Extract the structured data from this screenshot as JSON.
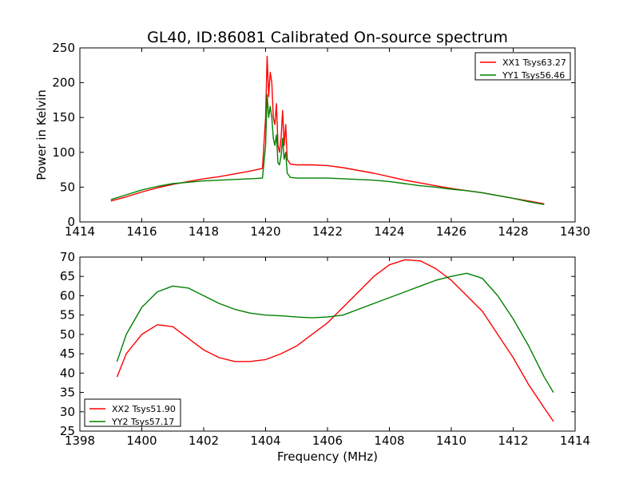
{
  "chart_data": [
    {
      "type": "line",
      "title": "GL40, ID:86081 Calibrated On-source spectrum",
      "xlabel": "",
      "ylabel": "Power in Kelvin",
      "xlim": [
        1414,
        1430
      ],
      "ylim": [
        0,
        250
      ],
      "xticks": [
        1414,
        1416,
        1418,
        1420,
        1422,
        1424,
        1426,
        1428,
        1430
      ],
      "yticks": [
        0,
        50,
        100,
        150,
        200,
        250
      ],
      "grid": false,
      "legend_position": "top-right",
      "series": [
        {
          "name": "XX1 Tsys63.27",
          "color": "#ff0000",
          "x": [
            1415,
            1415.5,
            1416,
            1416.5,
            1417,
            1417.5,
            1418,
            1418.5,
            1419,
            1419.5,
            1419.9,
            1420.0,
            1420.05,
            1420.1,
            1420.15,
            1420.2,
            1420.25,
            1420.3,
            1420.35,
            1420.4,
            1420.45,
            1420.5,
            1420.55,
            1420.6,
            1420.65,
            1420.7,
            1420.8,
            1421,
            1421.5,
            1422,
            1422.5,
            1423,
            1423.5,
            1424,
            1424.5,
            1425,
            1425.5,
            1426,
            1426.5,
            1427,
            1427.5,
            1428,
            1428.5,
            1429
          ],
          "values": [
            30,
            36,
            43,
            49,
            54,
            58,
            62,
            65,
            69,
            73,
            77,
            150,
            238,
            180,
            215,
            200,
            150,
            140,
            170,
            110,
            100,
            120,
            160,
            110,
            140,
            90,
            83,
            82,
            82,
            81,
            78,
            74,
            70,
            65,
            60,
            56,
            52,
            48,
            45,
            42,
            38,
            34,
            30,
            26
          ]
        },
        {
          "name": "YY1 Tsys56.46",
          "color": "#008000",
          "x": [
            1415,
            1415.5,
            1416,
            1416.5,
            1417,
            1417.5,
            1418,
            1418.5,
            1419,
            1419.5,
            1419.9,
            1420.0,
            1420.05,
            1420.1,
            1420.15,
            1420.2,
            1420.25,
            1420.3,
            1420.35,
            1420.4,
            1420.45,
            1420.5,
            1420.55,
            1420.6,
            1420.65,
            1420.7,
            1420.8,
            1421,
            1421.5,
            1422,
            1422.5,
            1423,
            1423.5,
            1424,
            1424.5,
            1425,
            1425.5,
            1426,
            1426.5,
            1427,
            1427.5,
            1428,
            1428.5,
            1429
          ],
          "values": [
            32,
            39,
            46,
            51,
            55,
            57,
            59,
            60,
            61,
            62,
            63,
            110,
            183,
            150,
            166,
            150,
            120,
            110,
            125,
            85,
            82,
            95,
            120,
            90,
            100,
            70,
            64,
            63,
            63,
            63,
            62,
            61,
            60,
            58,
            55,
            52,
            50,
            47,
            45,
            42,
            38,
            34,
            29,
            25
          ]
        }
      ]
    },
    {
      "type": "line",
      "title": "",
      "xlabel": "Frequency (MHz)",
      "ylabel": "",
      "xlim": [
        1398,
        1414
      ],
      "ylim": [
        25,
        70
      ],
      "xticks": [
        1398,
        1400,
        1402,
        1404,
        1406,
        1408,
        1410,
        1412,
        1414
      ],
      "yticks": [
        25,
        30,
        35,
        40,
        45,
        50,
        55,
        60,
        65,
        70
      ],
      "grid": false,
      "legend_position": "bottom-left",
      "series": [
        {
          "name": "XX2 Tsys51.90",
          "color": "#ff0000",
          "x": [
            1399.2,
            1399.5,
            1400,
            1400.5,
            1401,
            1401.5,
            1402,
            1402.5,
            1403,
            1403.5,
            1404,
            1404.5,
            1405,
            1405.5,
            1406,
            1406.5,
            1407,
            1407.5,
            1408,
            1408.5,
            1409,
            1409.5,
            1410,
            1410.5,
            1411,
            1411.5,
            1412,
            1412.5,
            1413,
            1413.3
          ],
          "values": [
            39,
            45,
            50,
            52.5,
            52,
            49,
            46,
            44,
            43,
            43,
            43.5,
            45,
            47,
            50,
            53,
            57,
            61,
            65,
            68,
            69.3,
            69,
            67,
            64,
            60,
            56,
            50,
            44,
            37,
            31,
            27.5
          ]
        },
        {
          "name": "YY2 Tsys57.17",
          "color": "#008000",
          "x": [
            1399.2,
            1399.5,
            1400,
            1400.5,
            1401,
            1401.5,
            1402,
            1402.5,
            1403,
            1403.5,
            1404,
            1404.5,
            1405,
            1405.5,
            1406,
            1406.5,
            1407,
            1407.5,
            1408,
            1408.5,
            1409,
            1409.5,
            1410,
            1410.5,
            1411,
            1411.5,
            1412,
            1412.5,
            1413,
            1413.3
          ],
          "values": [
            43,
            50,
            57,
            61,
            62.5,
            62,
            60,
            58,
            56.5,
            55.5,
            55,
            54.8,
            54.5,
            54.3,
            54.5,
            55,
            56.5,
            58,
            59.5,
            61,
            62.5,
            64,
            65,
            65.8,
            64.5,
            60,
            54,
            47,
            39,
            35
          ]
        }
      ]
    }
  ]
}
